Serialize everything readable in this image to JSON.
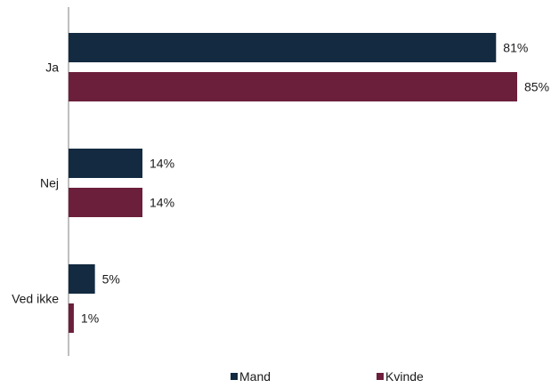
{
  "chart_data": {
    "type": "bar",
    "orientation": "horizontal",
    "categories": [
      "Ja",
      "Nej",
      "Ved ikke"
    ],
    "series": [
      {
        "name": "Mand",
        "values": [
          81,
          14,
          5
        ],
        "color": "#132a40"
      },
      {
        "name": "Kvinde",
        "values": [
          85,
          14,
          1
        ],
        "color": "#6b1f3b"
      }
    ],
    "value_labels": [
      [
        "81%",
        "14%",
        "5%"
      ],
      [
        "85%",
        "14%",
        "1%"
      ]
    ],
    "value_unit": "%",
    "xlim": [
      0,
      85
    ],
    "grid": false,
    "legend_position": "bottom"
  }
}
